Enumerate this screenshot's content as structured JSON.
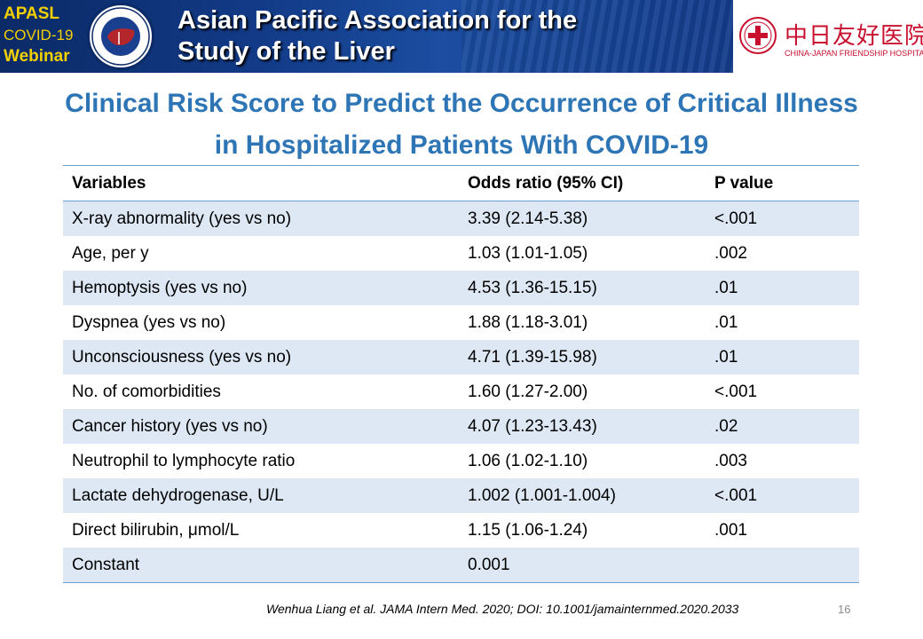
{
  "banner": {
    "apasl": "APASL",
    "covid": "COVID-19",
    "webinar": "Webinar",
    "seal_text": "Asian Pacific Association for the Study of the Liver",
    "title_line1": "Asian Pacific Association for the",
    "title_line2": "Study of the Liver",
    "colors": {
      "background": "#123a86",
      "accent": "#f4d000"
    }
  },
  "hospital": {
    "name_cn": "中日友好医院",
    "name_en": "CHINA-JAPAN FRIENDSHIP HOSPITAL",
    "color": "#c8102e",
    "icon": "red-cross-emblem-icon"
  },
  "slide": {
    "title_line1": "Clinical Risk Score to Predict the Occurrence of Critical Illness",
    "title_line2": "in Hospitalized Patients With COVID-19",
    "title_color": "#2e75b6"
  },
  "table": {
    "headers": [
      "Variables",
      "Odds ratio (95% CI)",
      "P value"
    ],
    "rows": [
      [
        "X-ray abnormality (yes vs no)",
        "3.39 (2.14-5.38)",
        "<.001"
      ],
      [
        "Age, per y",
        "1.03 (1.01-1.05)",
        ".002"
      ],
      [
        "Hemoptysis (yes vs no)",
        "4.53 (1.36-15.15)",
        ".01"
      ],
      [
        "Dyspnea (yes vs no)",
        "1.88 (1.18-3.01)",
        ".01"
      ],
      [
        "Unconsciousness (yes vs no)",
        "4.71 (1.39-15.98)",
        ".01"
      ],
      [
        "No. of comorbidities",
        "1.60 (1.27-2.00)",
        "<.001"
      ],
      [
        "Cancer history (yes vs no)",
        "4.07 (1.23-13.43)",
        ".02"
      ],
      [
        "Neutrophil to lymphocyte ratio",
        "1.06 (1.02-1.10)",
        ".003"
      ],
      [
        "Lactate dehydrogenase, U/L",
        "1.002 (1.001-1.004)",
        "<.001"
      ],
      [
        "Direct bilirubin, μmol/L",
        "1.15 (1.06-1.24)",
        ".001"
      ],
      [
        "Constant",
        "0.001",
        ""
      ]
    ],
    "stripe_color": "#dde8f4"
  },
  "footer": {
    "citation": "Wenhua Liang et al. JAMA Intern Med. 2020; DOI: 10.1001/jamainternmed.2020.2033",
    "page_number": "16"
  }
}
